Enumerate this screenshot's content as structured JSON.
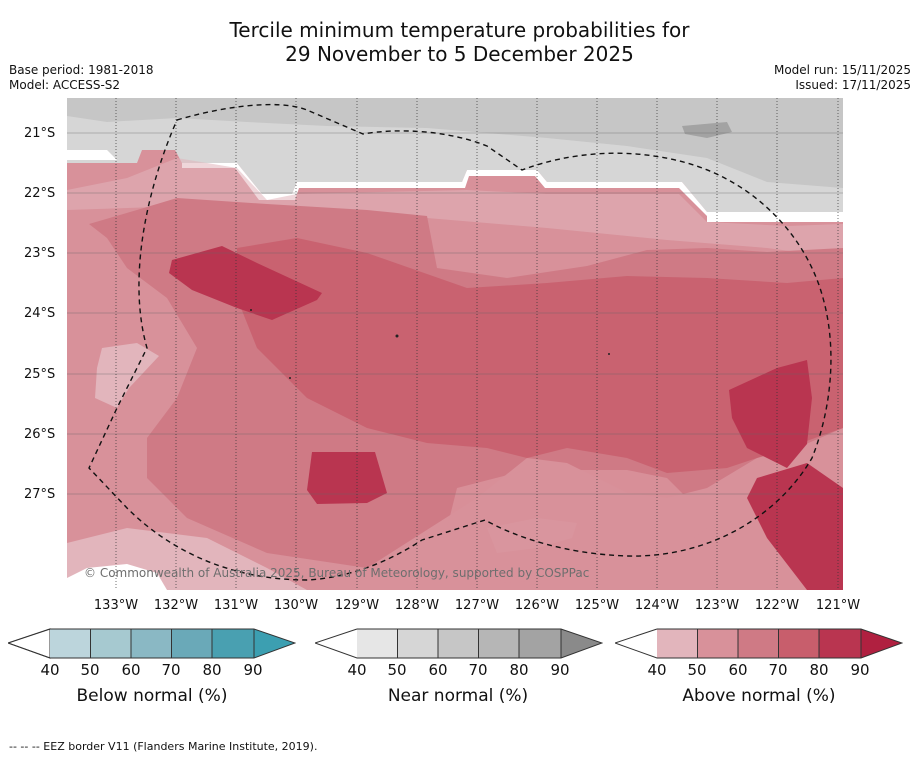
{
  "title": {
    "line1": "Tercile minimum temperature probabilities for",
    "line2": "29 November to 5 December 2025"
  },
  "meta": {
    "base_period": "Base period: 1981-2018",
    "model": "Model: ACCESS-S2",
    "model_run": "Model run: 15/11/2025",
    "issued": "Issued: 17/11/2025"
  },
  "map": {
    "lat_labels": [
      "21°S",
      "22°S",
      "23°S",
      "24°S",
      "25°S",
      "26°S",
      "27°S"
    ],
    "lon_labels": [
      "133°W",
      "132°W",
      "131°W",
      "130°W",
      "129°W",
      "128°W",
      "127°W",
      "126°W",
      "125°W",
      "124°W",
      "123°W",
      "122°W",
      "121°W"
    ],
    "copyright": "© Commonwealth of Australia 2025, Bureau of Meteorology, supported by COSPPac",
    "dominant_category": "Above normal",
    "north_category": "Near normal"
  },
  "legend": {
    "below": {
      "label": "Below normal (%)",
      "ticks": [
        "40",
        "50",
        "60",
        "70",
        "80",
        "90"
      ],
      "colors": [
        "#ffffff",
        "#bcd5dc",
        "#a6c9d0",
        "#8ab8c4",
        "#6aa9b8",
        "#49a0b1",
        "#3c9fb1"
      ]
    },
    "near": {
      "label": "Near normal (%)",
      "ticks": [
        "40",
        "50",
        "60",
        "70",
        "80",
        "90"
      ],
      "colors": [
        "#ffffff",
        "#e6e6e6",
        "#d6d6d6",
        "#c6c6c6",
        "#b6b6b6",
        "#a3a3a3",
        "#8a8a8a"
      ]
    },
    "above": {
      "label": "Above normal (%)",
      "ticks": [
        "40",
        "50",
        "60",
        "70",
        "80",
        "90"
      ],
      "colors": [
        "#ffffff",
        "#e2b5bc",
        "#d8919a",
        "#cf7a85",
        "#c85e6c",
        "#b93550",
        "#b02040"
      ]
    }
  },
  "footer": "--  --  -- EEZ border V11 (Flanders Marine Institute, 2019)."
}
